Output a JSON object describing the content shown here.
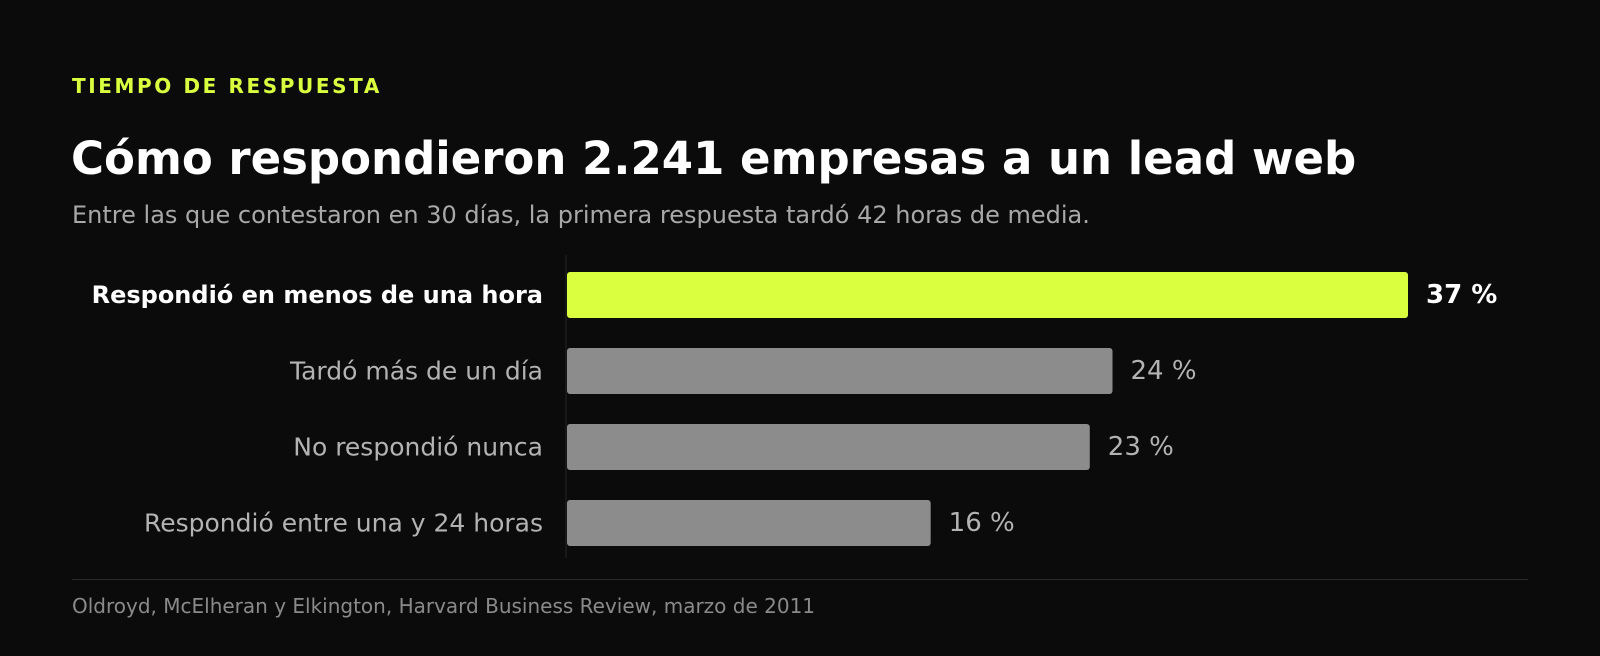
{
  "header": {
    "eyebrow": "TIEMPO DE RESPUESTA",
    "title": "Cómo respondieron 2.241 empresas a un lead web",
    "subtitle": "Entre las que contestaron en 30 días, la primera respuesta tardó 42 horas de media."
  },
  "chart_data": {
    "type": "bar",
    "orientation": "horizontal",
    "categories": [
      "Respondió en menos de una hora",
      "Tardó más de un día",
      "No respondió nunca",
      "Respondió entre una y 24 horas"
    ],
    "values": [
      37,
      24,
      23,
      16
    ],
    "value_labels": [
      "37 %",
      "24 %",
      "23 %",
      "16 %"
    ],
    "unit": "%",
    "highlight_index": 0,
    "xlim": [
      0,
      37
    ],
    "grid": false,
    "legend": "none",
    "colors": {
      "highlight": "#d9ff3f",
      "default": "#8c8c8c",
      "label_highlight": "#ffffff",
      "label_default": "#b3b3b3"
    }
  },
  "footer": {
    "source": "Oldroyd, McElheran y Elkington, Harvard Business Review, marzo de 2011"
  }
}
